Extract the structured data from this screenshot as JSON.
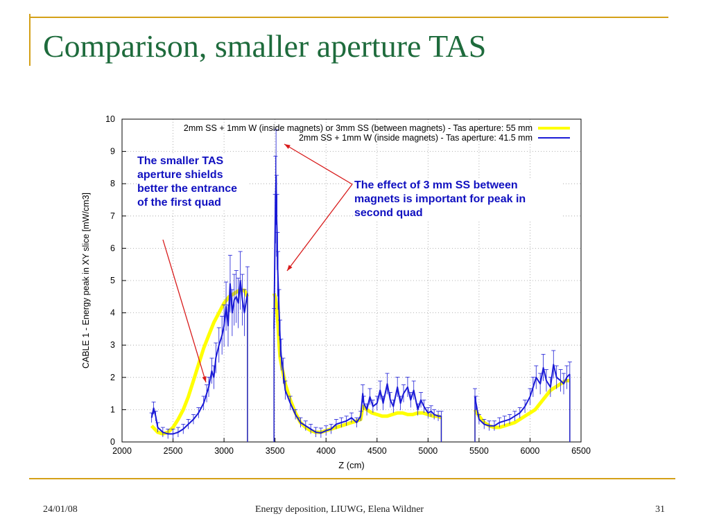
{
  "slide": {
    "title": "Comparison, smaller aperture TAS",
    "footer_date": "24/01/08",
    "footer_center": "Energy deposition, LIUWG, Elena Wildner",
    "page_number": "31",
    "accent_color": "#d4a017",
    "title_color": "#1e6b3c"
  },
  "annotations": {
    "left_callout": "The smaller TAS aperture shields better the entrance of the first quad",
    "right_callout": "The effect of 3 mm SS between magnets is important for peak in second quad"
  },
  "chart_data": {
    "type": "line",
    "title": "",
    "xlabel": "Z (cm)",
    "ylabel": "CABLE 1 - Energy peak in XY slice [mW/cm3]",
    "xlim": [
      2000,
      6500
    ],
    "ylim": [
      0,
      10
    ],
    "x_ticks": [
      2000,
      2500,
      3000,
      3500,
      4000,
      4500,
      5000,
      5500,
      6000,
      6500
    ],
    "y_ticks": [
      0,
      1,
      2,
      3,
      4,
      5,
      6,
      7,
      8,
      9,
      10
    ],
    "grid": true,
    "legend_position": "top-right",
    "series": [
      {
        "name": "2mm SS + 1mm W (inside magnets) or 3mm SS (between magnets) - Tas aperture: 55 mm",
        "color": "#ffff00",
        "x": [
          2290,
          2350,
          2400,
          2450,
          2500,
          2550,
          2600,
          2650,
          2700,
          2750,
          2800,
          2850,
          2900,
          2950,
          3000,
          3050,
          3100,
          3150,
          3200,
          3230,
          3490,
          3500,
          3510,
          3520,
          3530,
          3540,
          3550,
          3600,
          3650,
          3700,
          3750,
          3800,
          3850,
          3900,
          3950,
          4000,
          4050,
          4100,
          4150,
          4200,
          4250,
          4300,
          4340,
          4360,
          4400,
          4450,
          4500,
          4550,
          4600,
          4650,
          4700,
          4750,
          4800,
          4850,
          4900,
          4950,
          5000,
          5050,
          5100,
          5130,
          5460,
          5500,
          5550,
          5600,
          5650,
          5700,
          5750,
          5800,
          5850,
          5900,
          5950,
          6000,
          6050,
          6100,
          6150,
          6200,
          6250,
          6300,
          6350,
          6390
        ],
        "y": [
          0.5,
          0.3,
          0.25,
          0.3,
          0.45,
          0.7,
          1.0,
          1.4,
          1.9,
          2.4,
          2.9,
          3.3,
          3.7,
          4.0,
          4.3,
          4.5,
          4.6,
          4.7,
          4.7,
          4.5,
          4.6,
          4.5,
          4.3,
          4.0,
          3.6,
          3.0,
          2.6,
          1.8,
          1.3,
          0.9,
          0.6,
          0.45,
          0.35,
          0.3,
          0.3,
          0.35,
          0.4,
          0.45,
          0.5,
          0.55,
          0.6,
          0.65,
          0.7,
          1.1,
          1.0,
          0.9,
          0.85,
          0.8,
          0.8,
          0.85,
          0.9,
          0.9,
          0.85,
          0.85,
          0.9,
          0.9,
          0.85,
          0.8,
          0.8,
          0.75,
          1.0,
          0.8,
          0.6,
          0.5,
          0.45,
          0.45,
          0.5,
          0.55,
          0.6,
          0.7,
          0.8,
          0.9,
          1.0,
          1.2,
          1.4,
          1.6,
          1.7,
          1.8,
          1.9,
          1.9
        ]
      },
      {
        "name": "2mm SS + 1mm W (inside magnets) - Tas aperture: 41.5 mm",
        "color": "#1a1ad6",
        "x": [
          2290,
          2310,
          2330,
          2350,
          2400,
          2450,
          2500,
          2550,
          2600,
          2650,
          2700,
          2750,
          2800,
          2830,
          2850,
          2880,
          2900,
          2920,
          2950,
          2980,
          3000,
          3020,
          3040,
          3060,
          3080,
          3100,
          3120,
          3140,
          3160,
          3180,
          3200,
          3230,
          3490,
          3500,
          3505,
          3510,
          3515,
          3520,
          3525,
          3530,
          3540,
          3550,
          3560,
          3580,
          3600,
          3650,
          3700,
          3750,
          3800,
          3850,
          3900,
          3950,
          4000,
          4050,
          4100,
          4150,
          4200,
          4250,
          4300,
          4340,
          4360,
          4370,
          4400,
          4430,
          4460,
          4500,
          4530,
          4560,
          4600,
          4630,
          4660,
          4700,
          4730,
          4760,
          4800,
          4830,
          4860,
          4900,
          4930,
          4960,
          5000,
          5030,
          5060,
          5100,
          5130,
          5460,
          5470,
          5500,
          5550,
          5600,
          5650,
          5700,
          5750,
          5800,
          5850,
          5900,
          5950,
          6000,
          6030,
          6060,
          6100,
          6130,
          6160,
          6200,
          6230,
          6260,
          6300,
          6330,
          6360,
          6390
        ],
        "y": [
          0.75,
          1.05,
          0.8,
          0.45,
          0.3,
          0.25,
          0.25,
          0.3,
          0.4,
          0.55,
          0.7,
          0.9,
          1.2,
          1.5,
          1.7,
          2.2,
          2.0,
          2.6,
          3.0,
          3.3,
          3.6,
          4.2,
          3.6,
          4.9,
          4.0,
          4.4,
          4.5,
          4.3,
          5.0,
          4.4,
          4.0,
          4.6,
          3.5,
          6.5,
          7.5,
          8.2,
          7.0,
          6.5,
          5.5,
          5.0,
          4.0,
          3.2,
          2.7,
          2.2,
          1.6,
          1.2,
          0.85,
          0.6,
          0.5,
          0.4,
          0.3,
          0.28,
          0.35,
          0.4,
          0.55,
          0.6,
          0.65,
          0.75,
          0.6,
          0.8,
          1.5,
          1.2,
          1.0,
          1.4,
          1.1,
          1.2,
          1.6,
          1.2,
          1.8,
          1.3,
          1.1,
          1.7,
          1.2,
          1.5,
          1.7,
          1.3,
          1.6,
          1.0,
          1.3,
          1.1,
          0.9,
          0.95,
          0.85,
          0.8,
          0.8,
          1.4,
          1.2,
          0.7,
          0.55,
          0.5,
          0.5,
          0.6,
          0.65,
          0.7,
          0.8,
          0.9,
          1.1,
          1.4,
          1.7,
          2.0,
          1.8,
          2.3,
          1.9,
          1.7,
          2.4,
          2.0,
          1.9,
          1.8,
          2.0,
          2.1
        ]
      }
    ]
  }
}
